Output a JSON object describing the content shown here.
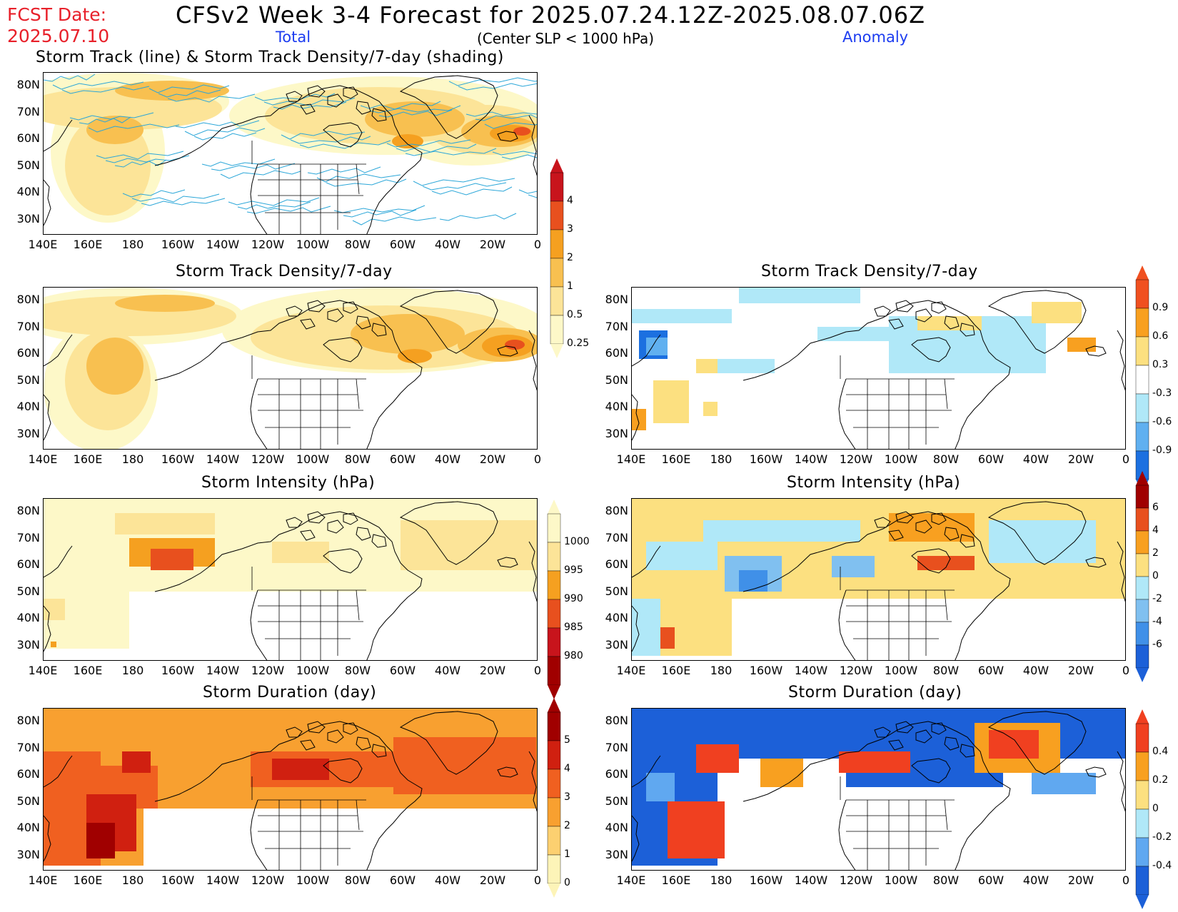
{
  "header": {
    "fcst_label": "FCST Date:",
    "fcst_date": "2025.07.10",
    "title": "CFSv2 Week 3-4 Forecast for 2025.07.24.12Z-2025.08.07.06Z",
    "total_label": "Total",
    "criterion": "(Center SLP < 1000 hPa)",
    "anomaly_label": "Anomaly",
    "top_panel_title": "Storm Track (line) & Storm Track Density/7-day (shading)"
  },
  "lat_labels": [
    "80N",
    "70N",
    "60N",
    "50N",
    "40N",
    "30N"
  ],
  "lon_labels": [
    "140E",
    "160E",
    "180",
    "160W",
    "140W",
    "120W",
    "100W",
    "80W",
    "60W",
    "40W",
    "20W",
    "0"
  ],
  "panels": {
    "p_track": {
      "title": ""
    },
    "p_density_total": {
      "title": "Storm Track Density/7-day"
    },
    "p_density_anom": {
      "title": "Storm Track Density/7-day"
    },
    "p_intensity_total": {
      "title": "Storm Intensity (hPa)"
    },
    "p_intensity_anom": {
      "title": "Storm Intensity (hPa)"
    },
    "p_duration_total": {
      "title": "Storm Duration (day)"
    },
    "p_duration_anom": {
      "title": "Storm Duration (day)"
    }
  },
  "colorbars": {
    "density_total": {
      "labels": [
        "4",
        "3",
        "2",
        "1",
        "0.5",
        "0.25"
      ],
      "colors": [
        "#c8141c",
        "#e8501e",
        "#f5a020",
        "#f8c050",
        "#fce498",
        "#fdf8c8"
      ]
    },
    "density_anom": {
      "labels": [
        "0.9",
        "0.6",
        "0.3",
        "-0.3",
        "-0.6",
        "-0.9"
      ],
      "colors": [
        "#f05020",
        "#f8a020",
        "#fce080",
        "#ffffff",
        "#b0e8f8",
        "#60b0f0",
        "#1c70e0"
      ]
    },
    "intensity_total": {
      "labels": [
        "1000",
        "995",
        "990",
        "985",
        "980"
      ],
      "colors": [
        "#fdf8c8",
        "#fce498",
        "#f5a020",
        "#e8501e",
        "#c8141c",
        "#a00000"
      ]
    },
    "intensity_anom": {
      "labels": [
        "6",
        "4",
        "2",
        "0",
        "-2",
        "-4",
        "-6"
      ],
      "colors": [
        "#a00000",
        "#e8501e",
        "#f8a020",
        "#fce080",
        "#b0e8f8",
        "#80c0f0",
        "#4090e8",
        "#1c60d8"
      ]
    },
    "duration_total": {
      "labels": [
        "5",
        "4",
        "3",
        "2",
        "1",
        "0"
      ],
      "colors": [
        "#a00000",
        "#d02010",
        "#f06020",
        "#f8a030",
        "#fcd070",
        "#fdf4b8"
      ]
    },
    "duration_anom": {
      "labels": [
        "0.4",
        "0.2",
        "0",
        "-0.2",
        "-0.4"
      ],
      "colors": [
        "#f04020",
        "#f8a020",
        "#fce080",
        "#b0e8f8",
        "#60a8f0",
        "#1c60d8"
      ]
    }
  },
  "palette": {
    "track_line": "#2aa6d8",
    "coast": "#000000"
  }
}
